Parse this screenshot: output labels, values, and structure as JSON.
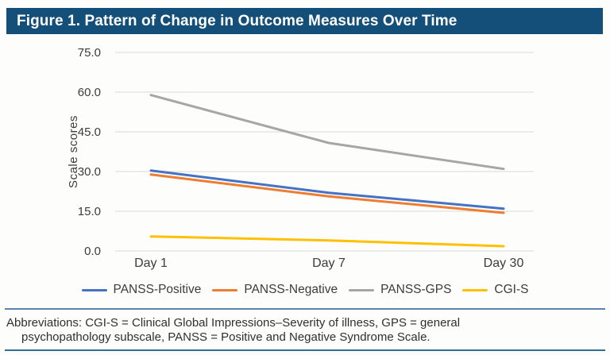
{
  "header": {
    "title": "Figure 1. Pattern of Change in Outcome Measures Over Time"
  },
  "chart_data": {
    "type": "line",
    "title": "Figure 1. Pattern of Change in Outcome Measures Over Time",
    "categories": [
      "Day 1",
      "Day 7",
      "Day 30"
    ],
    "xlabel": "",
    "ylabel": "Scale scores",
    "ylim": [
      0,
      75
    ],
    "yticks": [
      0,
      15,
      30,
      45,
      60,
      75
    ],
    "ytick_labels": [
      "0.0",
      "15.0",
      "30.0",
      "45.0",
      "60.0",
      "75.0"
    ],
    "grid": true,
    "legend_position": "bottom",
    "series": [
      {
        "name": "PANSS-Positive",
        "color": "#4472c4",
        "values": [
          30.4,
          22.0,
          16.0
        ]
      },
      {
        "name": "PANSS-Negative",
        "color": "#ed7d31",
        "values": [
          28.9,
          20.6,
          14.4
        ]
      },
      {
        "name": "PANSS-GPS",
        "color": "#a6a6a6",
        "values": [
          58.9,
          40.8,
          31.0
        ]
      },
      {
        "name": "CGI-S",
        "color": "#ffc000",
        "values": [
          5.5,
          4.0,
          1.8
        ]
      }
    ]
  },
  "footnote": {
    "line1": "Abbreviations: CGI-S = Clinical Global Impressions–Severity of illness, GPS = general",
    "line2": "psychopathology subscale, PANSS = Positive and Negative Syndrome Scale."
  },
  "colors": {
    "header_bg": "#134f78",
    "top_rule": "#5a84ac",
    "bottom_rule": "#2f7090",
    "grid_line": "#d9d9d9",
    "axis_text": "#3c3c3c"
  }
}
